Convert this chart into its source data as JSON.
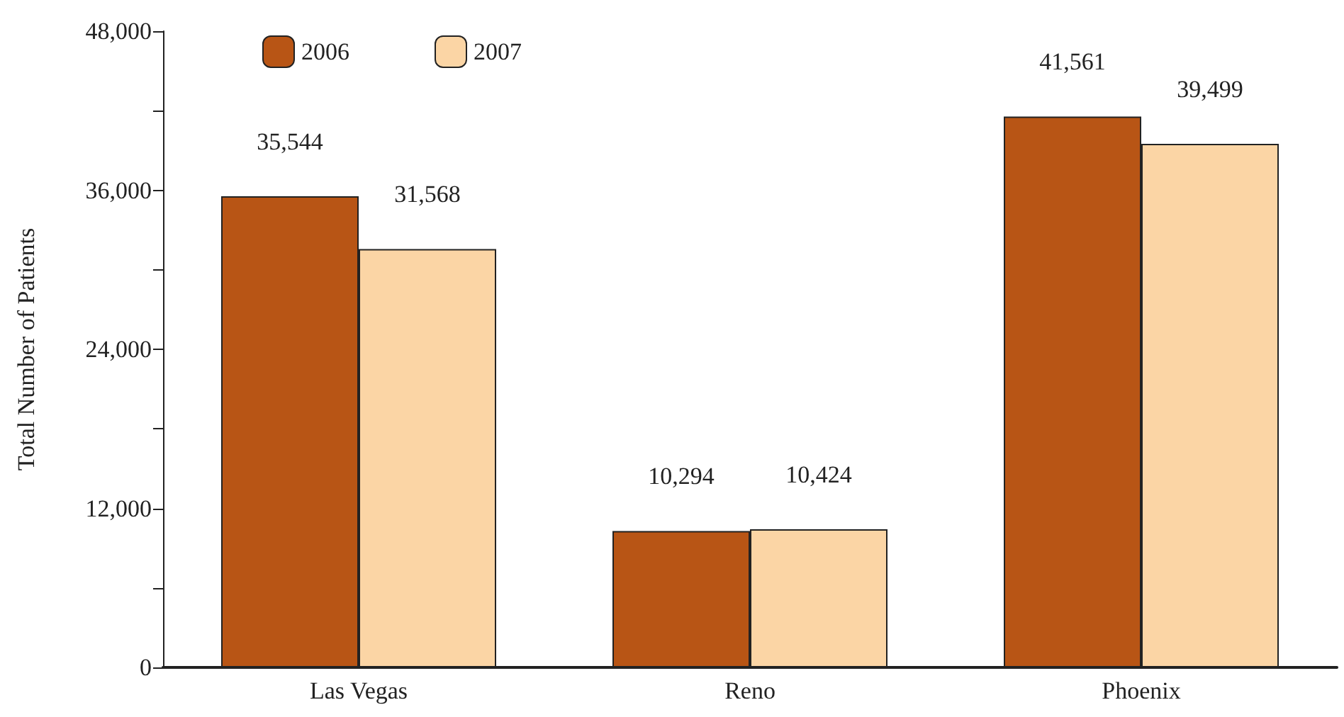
{
  "chart_data": {
    "type": "bar",
    "ylabel": "Total Number of Patients",
    "categories": [
      "Las Vegas",
      "Reno",
      "Phoenix"
    ],
    "series": [
      {
        "name": "2006",
        "color": "#b85515",
        "values": [
          35544,
          10294,
          41561
        ],
        "value_labels": [
          "35,544",
          "10,294",
          "41,561"
        ]
      },
      {
        "name": "2007",
        "color": "#fbd5a5",
        "values": [
          31568,
          10424,
          39499
        ],
        "value_labels": [
          "31,568",
          "10,424",
          "39,499"
        ]
      }
    ],
    "ylim": [
      0,
      48000
    ],
    "yticks": [
      {
        "value": 0,
        "label": "0"
      },
      {
        "value": 6000,
        "label": null
      },
      {
        "value": 12000,
        "label": "12,000"
      },
      {
        "value": 18000,
        "label": null
      },
      {
        "value": 24000,
        "label": "24,000"
      },
      {
        "value": 30000,
        "label": null
      },
      {
        "value": 36000,
        "label": "36,000"
      },
      {
        "value": 42000,
        "label": null
      },
      {
        "value": 48000,
        "label": "48,000"
      }
    ],
    "grid": false,
    "legend": "top left"
  }
}
